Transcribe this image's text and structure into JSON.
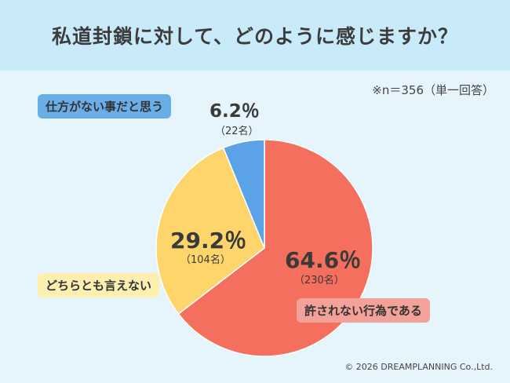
{
  "title": "私道封鎖に対して、どのように感じますか？",
  "note": "※n＝356（単一回答）",
  "copyright": "© 2026 DREAMPLANNING Co.,Ltd.",
  "chart_data": {
    "type": "pie",
    "title": "私道封鎖に対して、どのように感じますか？",
    "n": 356,
    "slices": [
      {
        "label": "許されない行為である",
        "percent": 64.6,
        "percent_text": "64.6％",
        "count_text": "（230名）",
        "color": "#f46f5e"
      },
      {
        "label": "どちらとも言えない",
        "percent": 29.2,
        "percent_text": "29.2％",
        "count_text": "（104名）",
        "color": "#fdd56b"
      },
      {
        "label": "仕方がない事だと思う",
        "percent": 6.2,
        "percent_text": "6.2％",
        "count_text": "（22名）",
        "color": "#5ba2e6"
      }
    ]
  }
}
